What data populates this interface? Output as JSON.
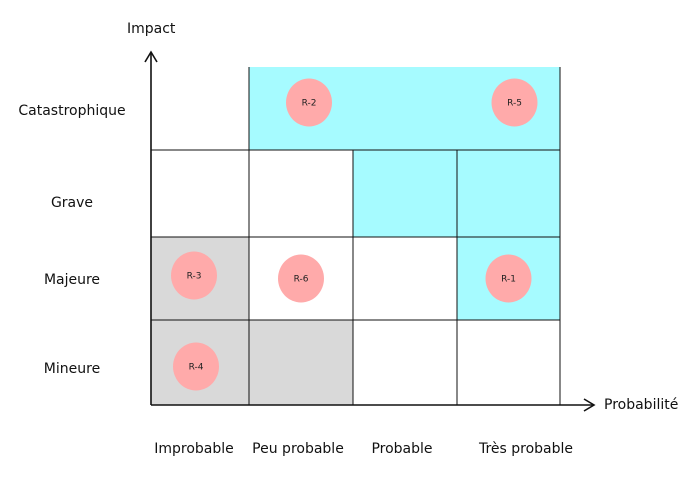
{
  "matrix": {
    "y_axis_title": "Impact",
    "x_axis_title": "Probabilité",
    "impact_levels": [
      "Catastrophique",
      "Grave",
      "Majeure",
      "Mineure"
    ],
    "probability_levels": [
      "Improbable",
      "Peu probable",
      "Probable",
      "Très probable"
    ],
    "cell_colors": [
      [
        "#ffffff",
        "#a6fbff",
        "#a6fbff",
        "#a6fbff"
      ],
      [
        "#ffffff",
        "#ffffff",
        "#a6fbff",
        "#a6fbff"
      ],
      [
        "#d9d9d9",
        "#ffffff",
        "#ffffff",
        "#a6fbff"
      ],
      [
        "#d9d9d9",
        "#d9d9d9",
        "#ffffff",
        "#ffffff"
      ]
    ],
    "risks": [
      {
        "label": "R-1",
        "impact": "Majeure",
        "probability": "Très probable"
      },
      {
        "label": "R-2",
        "impact": "Catastrophique",
        "probability": "Peu probable"
      },
      {
        "label": "R-3",
        "impact": "Majeure",
        "probability": "Improbable"
      },
      {
        "label": "R-4",
        "impact": "Mineure",
        "probability": "Improbable"
      },
      {
        "label": "R-5",
        "impact": "Catastrophique",
        "probability": "Très probable"
      },
      {
        "label": "R-6",
        "impact": "Majeure",
        "probability": "Peu probable"
      }
    ],
    "colors": {
      "risk_marker": "#ffaaaa",
      "grid_line": "#111111"
    }
  }
}
